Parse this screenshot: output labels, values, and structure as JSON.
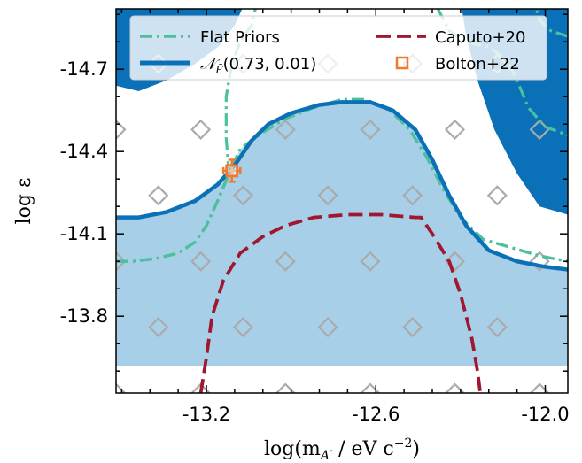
{
  "chart_data": {
    "type": "contour",
    "xlabel": "log(m_{A'} / eV c^{-2})",
    "ylabel": "log ε",
    "xlim": [
      -13.52,
      -11.92
    ],
    "ylim": [
      -14.92,
      -13.52
    ],
    "xticks": [
      -13.2,
      -12.6,
      -12.0
    ],
    "xtick_labels": [
      "-13.2",
      "-12.6",
      "-12.0"
    ],
    "yticks": [
      -13.8,
      -14.1,
      -14.4,
      -14.7
    ],
    "ytick_labels": [
      "-13.8",
      "-14.1",
      "-14.4",
      "-14.7"
    ],
    "grid": false,
    "legend_position": "top",
    "colors": {
      "flat_priors": "#4cbf9c",
      "flat_fill": "#b7e3d2",
      "gaussian": "#0a70b8",
      "gaussian_fill_outer": "#a8cfe8",
      "gaussian_fill_inner": "#0a70b8",
      "caputo": "#a01830",
      "bolton": "#f07a2c",
      "grid_marker": "#aaaaaa"
    },
    "series": [
      {
        "name": "Flat Priors",
        "style": "dashdot",
        "points": [
          [
            -13.52,
            -14.0
          ],
          [
            -13.46,
            -14.0
          ],
          [
            -13.38,
            -14.01
          ],
          [
            -13.3,
            -14.03
          ],
          [
            -13.24,
            -14.07
          ],
          [
            -13.2,
            -14.13
          ],
          [
            -13.16,
            -14.22
          ],
          [
            -13.12,
            -14.32
          ],
          [
            -13.08,
            -14.41
          ],
          [
            -13.0,
            -14.47
          ],
          [
            -12.92,
            -14.52
          ],
          [
            -12.82,
            -14.56
          ],
          [
            -12.72,
            -14.59
          ],
          [
            -12.64,
            -14.59
          ],
          [
            -12.56,
            -14.56
          ],
          [
            -12.48,
            -14.48
          ],
          [
            -12.42,
            -14.38
          ],
          [
            -12.36,
            -14.26
          ],
          [
            -12.3,
            -14.16
          ],
          [
            -12.22,
            -14.08
          ],
          [
            -12.12,
            -14.05
          ],
          [
            -12.02,
            -14.02
          ],
          [
            -11.92,
            -14.0
          ]
        ]
      },
      {
        "name": "N_F(0.73, 0.01)",
        "style": "solid",
        "points": [
          [
            -13.52,
            -14.16
          ],
          [
            -13.44,
            -14.16
          ],
          [
            -13.34,
            -14.18
          ],
          [
            -13.24,
            -14.22
          ],
          [
            -13.16,
            -14.28
          ],
          [
            -13.1,
            -14.35
          ],
          [
            -13.04,
            -14.44
          ],
          [
            -12.98,
            -14.5
          ],
          [
            -12.9,
            -14.54
          ],
          [
            -12.8,
            -14.57
          ],
          [
            -12.72,
            -14.58
          ],
          [
            -12.62,
            -14.58
          ],
          [
            -12.54,
            -14.55
          ],
          [
            -12.46,
            -14.48
          ],
          [
            -12.4,
            -14.37
          ],
          [
            -12.34,
            -14.24
          ],
          [
            -12.28,
            -14.13
          ],
          [
            -12.2,
            -14.04
          ],
          [
            -12.1,
            -14.0
          ],
          [
            -12.0,
            -13.98
          ],
          [
            -11.92,
            -13.97
          ]
        ]
      },
      {
        "name": "Caputo+20",
        "style": "dashed",
        "points": [
          [
            -13.22,
            -13.52
          ],
          [
            -13.2,
            -13.65
          ],
          [
            -13.18,
            -13.8
          ],
          [
            -13.14,
            -13.93
          ],
          [
            -13.08,
            -14.03
          ],
          [
            -13.0,
            -14.09
          ],
          [
            -12.92,
            -14.13
          ],
          [
            -12.82,
            -14.16
          ],
          [
            -12.7,
            -14.17
          ],
          [
            -12.58,
            -14.17
          ],
          [
            -12.46,
            -14.16
          ],
          [
            -12.44,
            -14.16
          ],
          [
            -12.4,
            -14.1
          ],
          [
            -12.34,
            -14.0
          ],
          [
            -12.3,
            -13.88
          ],
          [
            -12.26,
            -13.72
          ],
          [
            -12.24,
            -13.6
          ],
          [
            -12.23,
            -13.52
          ]
        ]
      },
      {
        "name": "Bolton+22",
        "style": "marker",
        "points": [
          [
            -13.11,
            -14.33
          ]
        ],
        "xerr": 0.03,
        "yerr": 0.04
      }
    ],
    "grid_markers": {
      "x": [
        -13.52,
        -13.22,
        -12.92,
        -12.62,
        -12.32,
        -12.02
      ],
      "x_offset": [
        -13.37,
        -13.07,
        -12.77,
        -12.47,
        -12.17
      ],
      "y": [
        -13.52,
        -14.0,
        -14.48,
        -14.96
      ],
      "y_offset": [
        -13.76,
        -14.24,
        -14.72
      ]
    }
  },
  "legend": {
    "entries": [
      {
        "label": "Flat Priors",
        "key": "flat"
      },
      {
        "label": "Caputo+20",
        "key": "caputo"
      },
      {
        "label": "N_F(0.73, 0.01)",
        "key": "gauss"
      },
      {
        "label": "Bolton+22",
        "key": "bolton"
      }
    ],
    "gauss_label_main": "𝒩",
    "gauss_label_sub": "F̃",
    "gauss_label_args": "(0.73, 0.01)"
  },
  "axes": {
    "xlabel_main": "log(m",
    "xlabel_sub": "A′",
    "xlabel_rest": " / eV c",
    "xlabel_sup": "−2",
    "xlabel_close": ")",
    "ylabel_main": "log ε"
  }
}
